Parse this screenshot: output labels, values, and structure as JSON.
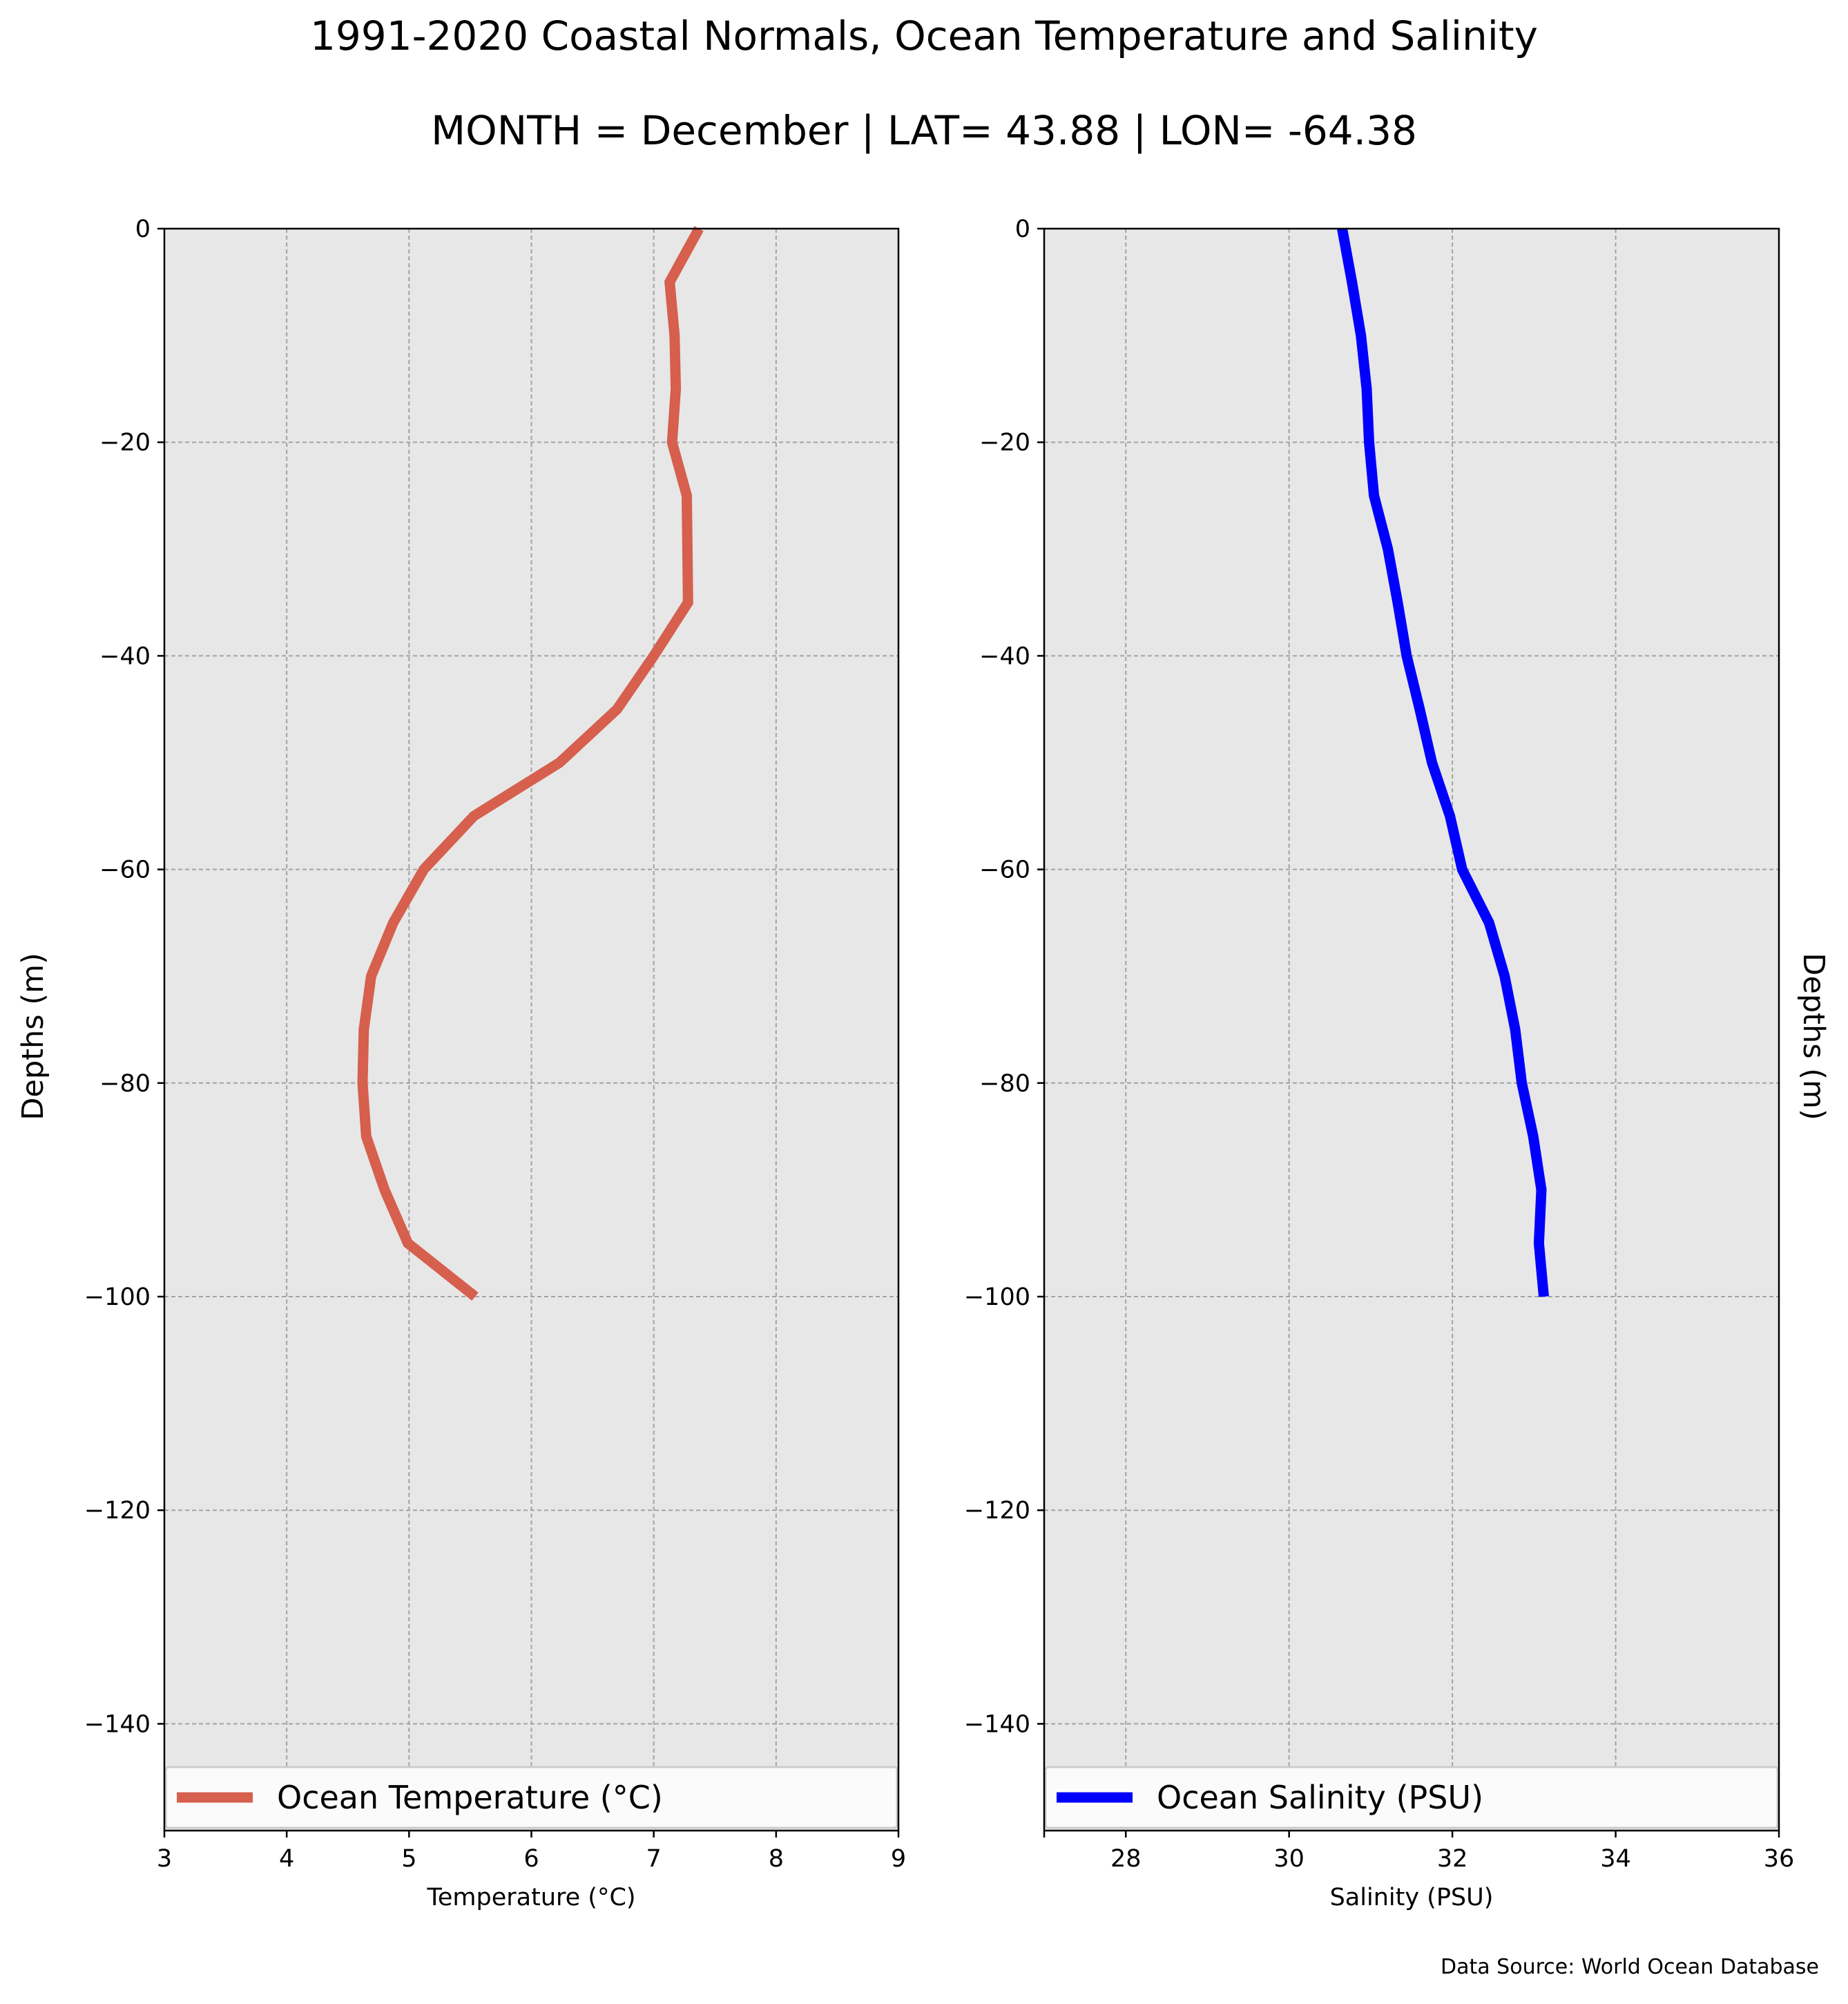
{
  "title": "1991-2020 Coastal Normals, Ocean Temperature and Salinity",
  "subtitle": "MONTH = December | LAT= 43.88 | LON= -64.38",
  "source": "Data Source: World Ocean Database",
  "chart_data": [
    {
      "type": "line",
      "xlabel": "Temperature (°C)",
      "ylabel": "Depths (m)",
      "xlim": [
        3,
        9
      ],
      "ylim": [
        -150,
        0
      ],
      "xticks": [
        3,
        4,
        5,
        6,
        7,
        8,
        9
      ],
      "xtick_labels": [
        "3",
        "4",
        "5",
        "6",
        "7",
        "8",
        "9"
      ],
      "yticks": [
        0,
        -20,
        -40,
        -60,
        -80,
        -100,
        -120,
        -140
      ],
      "ytick_labels": [
        "0",
        "−20",
        "−40",
        "−60",
        "−80",
        "−100",
        "−120",
        "−140"
      ],
      "ylabel_side": "left",
      "grid": true,
      "legend": "bottom",
      "series": [
        {
          "name": "Ocean Temperature (°C)",
          "color": "#d65f4d",
          "x": [
            7.37,
            7.13,
            7.17,
            7.18,
            7.15,
            7.27,
            7.28,
            7.0,
            6.7,
            6.23,
            5.53,
            5.12,
            4.87,
            4.69,
            4.63,
            4.62,
            4.65,
            4.8,
            4.99,
            5.54
          ],
          "y": [
            0,
            -5,
            -10,
            -15,
            -20,
            -25,
            -35,
            -40,
            -45,
            -50,
            -55,
            -60,
            -65,
            -70,
            -75,
            -80,
            -85,
            -90,
            -95,
            -100
          ]
        }
      ]
    },
    {
      "type": "line",
      "xlabel": "Salinity (PSU)",
      "ylabel": "Depths (m)",
      "xlim": [
        27,
        36
      ],
      "ylim": [
        -150,
        0
      ],
      "xticks": [
        27,
        28,
        30,
        32,
        34,
        36
      ],
      "xtick_labels": [
        "",
        "28",
        "30",
        "32",
        "34",
        "36"
      ],
      "yticks": [
        0,
        -20,
        -40,
        -60,
        -80,
        -100,
        -120,
        -140
      ],
      "ytick_labels": [
        "0",
        "−20",
        "−40",
        "−60",
        "−80",
        "−100",
        "−120",
        "−140"
      ],
      "ylabel_side": "right",
      "grid": true,
      "legend": "bottom",
      "series": [
        {
          "name": "Ocean Salinity (PSU)",
          "color": "#0000ff",
          "x": [
            30.65,
            30.77,
            30.88,
            30.95,
            30.98,
            31.04,
            31.21,
            31.33,
            31.44,
            31.6,
            31.75,
            31.97,
            32.12,
            32.45,
            32.64,
            32.77,
            32.85,
            32.99,
            33.09,
            33.06,
            33.12
          ],
          "y": [
            0,
            -5,
            -10,
            -15,
            -20,
            -25,
            -30,
            -35,
            -40,
            -45,
            -50,
            -55,
            -60,
            -65,
            -70,
            -75,
            -80,
            -85,
            -90,
            -95,
            -100
          ]
        }
      ]
    }
  ]
}
